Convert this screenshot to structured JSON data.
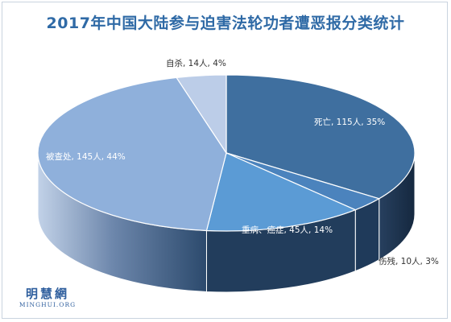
{
  "chart_data": {
    "type": "pie",
    "title": "2017年中国大陆参与迫害法轮功者遭恶报分类统计",
    "slices": [
      {
        "label": "死亡",
        "value": 115,
        "display": "死亡, 115人, 35%",
        "color": "#3f6f9f"
      },
      {
        "label": "伤残",
        "value": 10,
        "display": "伤残, 10人, 3%",
        "color": "#4b83bd"
      },
      {
        "label": "重病、癌症",
        "value": 45,
        "display": "重病、癌症, 45人, 14%",
        "color": "#5b9bd5"
      },
      {
        "label": "被查处",
        "value": 145,
        "display": "被查处, 145人, 44%",
        "color": "#8fb0db"
      },
      {
        "label": "自杀",
        "value": 14,
        "display": "自杀, 14人, 4%",
        "color": "#bccde8"
      }
    ]
  },
  "watermark": {
    "main": "明慧網",
    "sub": "MINGHUI.ORG"
  }
}
